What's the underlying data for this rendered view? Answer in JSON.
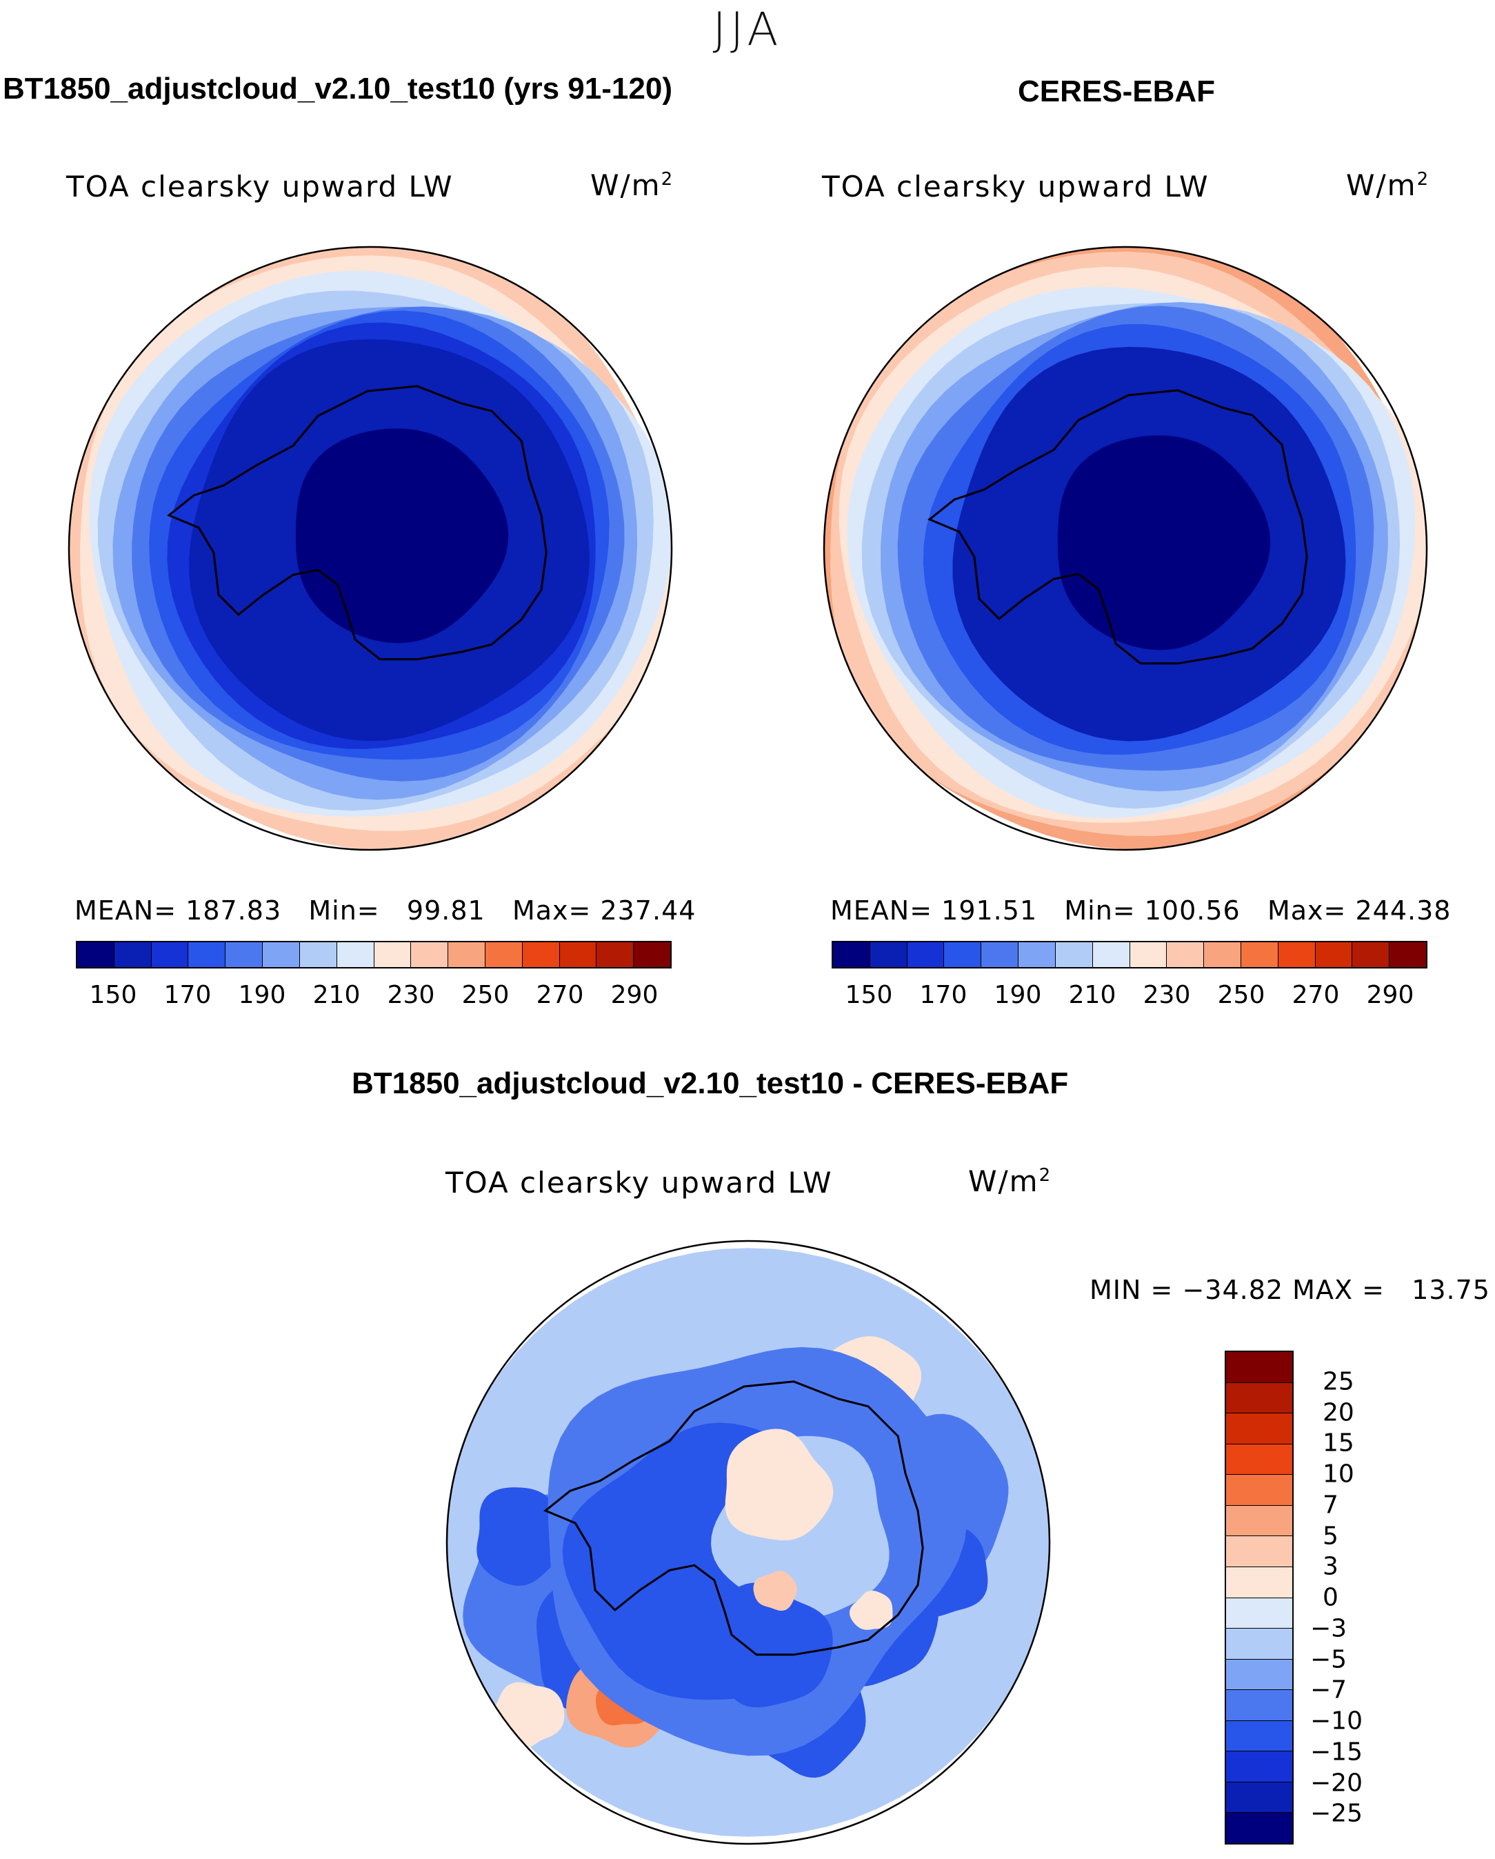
{
  "figure": {
    "season": "JJA",
    "variable": "TOA clearsky upward LW",
    "unit_base": "W/m",
    "unit_exp": "2"
  },
  "colors": {
    "abs_scale": [
      "#00007f",
      "#0a1fb3",
      "#1432d6",
      "#2855ea",
      "#4c78ef",
      "#7ea4f5",
      "#b2ccf8",
      "#dbe9fb",
      "#fde6d7",
      "#fcc9b0",
      "#f8a47e",
      "#f5733f",
      "#ea4512",
      "#d22c04",
      "#b31a04",
      "#7f0000"
    ],
    "diff_scale": [
      "#00007f",
      "#0a1fb3",
      "#1432d6",
      "#2855ea",
      "#4c78ef",
      "#7ea4f5",
      "#b2ccf8",
      "#dbe9fb",
      "#fde6d7",
      "#fcc9b0",
      "#f8a47e",
      "#f5733f",
      "#ea4512",
      "#d22c04",
      "#b31a04",
      "#7f0000"
    ]
  },
  "chart_data": [
    {
      "type": "heatmap",
      "projection": "south-polar-stereographic",
      "title": "BT1850_adjustcloud_v2.10_test10 (yrs 91-120)",
      "subtitle": "TOA clearsky upward LW",
      "stats": {
        "mean_label": "MEAN=",
        "mean": "187.83",
        "min_label": "Min=",
        "min": "99.81",
        "max_label": "Max=",
        "max": "237.44"
      },
      "colorbar_ticks": [
        "150",
        "170",
        "190",
        "210",
        "230",
        "250",
        "270",
        "290"
      ],
      "levels": [
        140,
        150,
        160,
        170,
        180,
        190,
        200,
        210,
        220,
        230,
        240,
        250,
        260,
        270,
        280,
        290
      ],
      "zones": [
        {
          "level_index": 9,
          "value": 235
        },
        {
          "level_index": 8,
          "value": 225
        },
        {
          "level_index": 7,
          "value": 215
        },
        {
          "level_index": 6,
          "value": 205
        },
        {
          "level_index": 5,
          "value": 195
        },
        {
          "level_index": 4,
          "value": 185
        },
        {
          "level_index": 3,
          "value": 175
        },
        {
          "level_index": 2,
          "value": 165
        },
        {
          "level_index": 1,
          "value": 155
        },
        {
          "level_index": 0,
          "value": 100
        }
      ]
    },
    {
      "type": "heatmap",
      "projection": "south-polar-stereographic",
      "title": "CERES-EBAF",
      "subtitle": "TOA clearsky upward LW",
      "stats": {
        "mean_label": "MEAN=",
        "mean": "191.51",
        "min_label": "Min=",
        "min": "100.56",
        "max_label": "Max=",
        "max": "244.38"
      },
      "colorbar_ticks": [
        "150",
        "170",
        "190",
        "210",
        "230",
        "250",
        "270",
        "290"
      ],
      "levels": [
        140,
        150,
        160,
        170,
        180,
        190,
        200,
        210,
        220,
        230,
        240,
        250,
        260,
        270,
        280,
        290
      ],
      "zones": [
        {
          "level_index": 10,
          "value": 242
        },
        {
          "level_index": 9,
          "value": 235
        },
        {
          "level_index": 8,
          "value": 225
        },
        {
          "level_index": 7,
          "value": 215
        },
        {
          "level_index": 6,
          "value": 205
        },
        {
          "level_index": 5,
          "value": 195
        },
        {
          "level_index": 4,
          "value": 185
        },
        {
          "level_index": 3,
          "value": 170
        },
        {
          "level_index": 1,
          "value": 155
        },
        {
          "level_index": 0,
          "value": 100
        }
      ]
    },
    {
      "type": "heatmap",
      "projection": "south-polar-stereographic",
      "title": "BT1850_adjustcloud_v2.10_test10 - CERES-EBAF",
      "subtitle": "TOA clearsky upward LW",
      "stats": {
        "min_label": "MIN =",
        "min": "−34.82",
        "max_label": "MAX =",
        "max": "13.75"
      },
      "colorbar_ticks": [
        "25",
        "20",
        "15",
        "10",
        "7",
        "5",
        "3",
        "0",
        "−3",
        "−5",
        "−7",
        "−10",
        "−15",
        "−20",
        "−25"
      ],
      "levels": [
        -25,
        -20,
        -15,
        -10,
        -7,
        -5,
        -3,
        0,
        3,
        5,
        7,
        10,
        15,
        20,
        25
      ]
    }
  ]
}
